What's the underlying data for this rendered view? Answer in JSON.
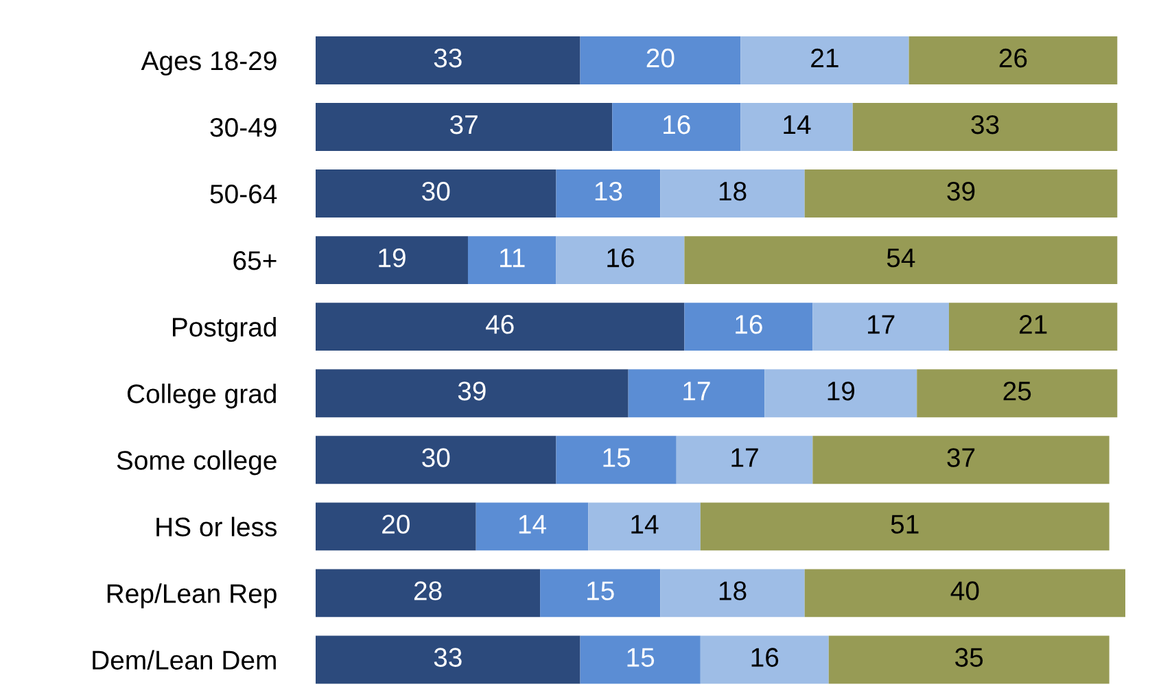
{
  "chart_data": {
    "type": "bar",
    "orientation": "horizontal",
    "stacked": true,
    "data_labels": true,
    "legend": false,
    "grid": false,
    "categories": [
      "Ages 18-29",
      "30-49",
      "50-64",
      "65+",
      "Postgrad",
      "College grad",
      "Some college",
      "HS or less",
      "Rep/Lean Rep",
      "Dem/Lean Dem"
    ],
    "series": [
      {
        "color": "#2c4a7c",
        "values": [
          33,
          37,
          30,
          19,
          46,
          39,
          30,
          20,
          28,
          33
        ]
      },
      {
        "color": "#5b8dd4",
        "values": [
          20,
          16,
          13,
          11,
          16,
          17,
          15,
          14,
          15,
          15
        ]
      },
      {
        "color": "#9ebde6",
        "values": [
          21,
          14,
          18,
          16,
          17,
          19,
          17,
          14,
          18,
          16
        ]
      },
      {
        "color": "#979b55",
        "values": [
          26,
          33,
          39,
          54,
          21,
          25,
          37,
          51,
          40,
          35
        ]
      }
    ]
  }
}
